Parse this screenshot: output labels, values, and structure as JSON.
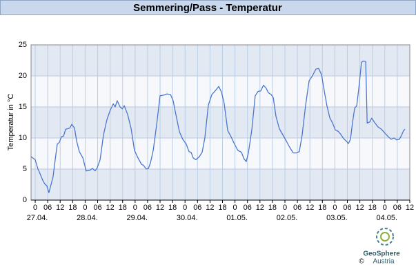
{
  "chart_data": {
    "type": "line",
    "title": "Semmering/Pass - Temperatur",
    "y_label": "Temperatur in °C",
    "color": "#4a76d0",
    "grid": true,
    "xlim": [
      -2,
      180
    ],
    "ylim": [
      0,
      25
    ],
    "yticks": [
      0,
      5,
      10,
      15,
      20,
      25
    ],
    "xticks": [
      0,
      {
        "value": 6,
        "label": "06"
      },
      12,
      18,
      {
        "value": 24,
        "label": "0"
      },
      {
        "value": 30,
        "label": "06"
      },
      {
        "value": 36,
        "label": "12"
      },
      {
        "value": 42,
        "label": "18"
      },
      {
        "value": 48,
        "label": "0"
      },
      {
        "value": 54,
        "label": "06"
      },
      {
        "value": 60,
        "label": "12"
      },
      {
        "value": 66,
        "label": "18"
      },
      {
        "value": 72,
        "label": "0"
      },
      {
        "value": 78,
        "label": "06"
      },
      {
        "value": 84,
        "label": "12"
      },
      {
        "value": 90,
        "label": "18"
      },
      {
        "value": 96,
        "label": "0"
      },
      {
        "value": 102,
        "label": "06"
      },
      {
        "value": 108,
        "label": "12"
      },
      {
        "value": 114,
        "label": "18"
      },
      {
        "value": 120,
        "label": "0"
      },
      {
        "value": 126,
        "label": "06"
      },
      {
        "value": 132,
        "label": "12"
      },
      {
        "value": 138,
        "label": "18"
      },
      {
        "value": 144,
        "label": "0"
      },
      {
        "value": 150,
        "label": "06"
      },
      {
        "value": 156,
        "label": "12"
      },
      {
        "value": 162,
        "label": "18"
      },
      {
        "value": 168,
        "label": "0"
      },
      {
        "value": 174,
        "label": "06"
      },
      {
        "value": 180,
        "label": "12"
      }
    ],
    "x_date_labels": [
      {
        "value": 0,
        "label": "27.04."
      },
      {
        "value": 24,
        "label": "28.04."
      },
      {
        "value": 48,
        "label": "29.04."
      },
      {
        "value": 72,
        "label": "30.04."
      },
      {
        "value": 96,
        "label": "01.05."
      },
      {
        "value": 120,
        "label": "02.05."
      },
      {
        "value": 144,
        "label": "03.05."
      },
      {
        "value": 168,
        "label": "04.05."
      }
    ],
    "x": [
      -2,
      0,
      1.3,
      2,
      3.6,
      4.6,
      5.6,
      6.6,
      7.6,
      8.6,
      9.6,
      10.6,
      11.6,
      12.6,
      13.6,
      14.6,
      15.6,
      16.6,
      17.6,
      18.9,
      19.9,
      21.2,
      22.9,
      24.5,
      26.2,
      27.5,
      28.8,
      29.8,
      31.2,
      32.8,
      34.5,
      36.1,
      37.5,
      38.4,
      39.4,
      40.8,
      41.8,
      42.8,
      44.4,
      46.1,
      47.7,
      49.4,
      51,
      52,
      53.4,
      54.4,
      55.4,
      56.7,
      58.3,
      60,
      61.7,
      63.3,
      65,
      66.3,
      67.6,
      69.3,
      70.9,
      72.6,
      73.9,
      74.9,
      75.9,
      77.2,
      78.9,
      80.2,
      81.5,
      83.2,
      84.9,
      86.5,
      88.2,
      89.5,
      90.8,
      92.5,
      94.1,
      95.8,
      97.4,
      99.1,
      100.4,
      101.4,
      102.4,
      104.1,
      105.7,
      107.1,
      108.4,
      109.7,
      111,
      112,
      113.4,
      114.4,
      115.7,
      117.3,
      119,
      120.7,
      122.3,
      124,
      125.6,
      126.9,
      128.3,
      129.9,
      131.6,
      133.2,
      134.9,
      136.2,
      137.6,
      138.9,
      140.2,
      141.5,
      142.9,
      144.2,
      145.5,
      146.8,
      148.2,
      149.5,
      150.5,
      151.5,
      152.5,
      153.5,
      154.5,
      155.5,
      156.8,
      157.8,
      158.8,
      159.5,
      160.8,
      161.7,
      163.1,
      164.7,
      166.4,
      168,
      169.7,
      171,
      172.4,
      173.7,
      175,
      176,
      177,
      177.7
    ],
    "values": [
      7,
      6.5,
      5,
      4.5,
      3.2,
      2.6,
      2.3,
      1.2,
      2.5,
      3.8,
      6.5,
      9,
      9.3,
      10.2,
      10.3,
      11.4,
      11.5,
      11.6,
      12.2,
      11.6,
      9.5,
      7.8,
      6.8,
      4.7,
      4.8,
      5.1,
      4.7,
      5.2,
      6.5,
      10.5,
      13,
      14.5,
      15.5,
      15,
      16,
      15,
      14.7,
      15.2,
      13.8,
      11.5,
      8,
      6.8,
      5.8,
      5.6,
      5,
      5.1,
      6,
      8,
      12,
      16.8,
      16.9,
      17.1,
      17,
      16,
      13.8,
      11,
      9.8,
      9,
      7.8,
      7.7,
      6.8,
      6.5,
      7,
      7.7,
      10,
      15.3,
      17,
      17.6,
      18.3,
      17.4,
      15.6,
      11.2,
      10.2,
      9,
      8,
      7.7,
      6.6,
      6.2,
      7.5,
      11.3,
      16.8,
      17.5,
      17.6,
      18.5,
      18,
      17.3,
      17,
      16.5,
      13.5,
      11.5,
      10.5,
      9.5,
      8.5,
      7.6,
      7.6,
      7.8,
      10.5,
      15.2,
      19.2,
      20,
      21.1,
      21.2,
      20.2,
      17.6,
      15.2,
      13.3,
      12.4,
      11.3,
      11.1,
      10.6,
      9.9,
      9.5,
      9.1,
      9.8,
      12.5,
      14.8,
      15.2,
      18,
      22.2,
      22.4,
      22.3,
      12.4,
      12.6,
      13.2,
      12.5,
      11.8,
      11.4,
      10.8,
      10.2,
      9.8,
      10,
      9.7,
      9.8,
      10.4,
      11.2,
      11.4
    ],
    "logo_name": "GeoSphere",
    "logo_sub": "Austria",
    "copyright": "©"
  }
}
